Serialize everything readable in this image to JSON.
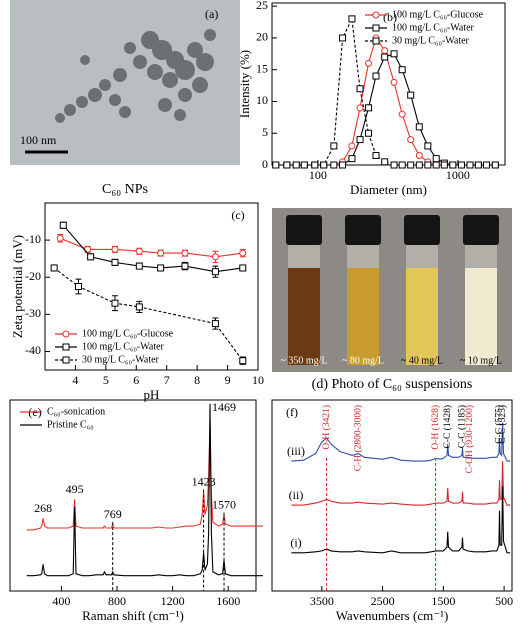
{
  "chart_data": [
    {
      "type": "line",
      "label": "(b)",
      "x_label": "Diameter (nm)",
      "y_label": "Intensity (%)",
      "xscale": "log",
      "xlim": [
        47,
        2170
      ],
      "xticks": [
        100,
        1000
      ],
      "ylim": [
        0,
        25.5
      ],
      "yticks": [
        0,
        5,
        10,
        15,
        20,
        25
      ],
      "grid": false,
      "legend": "upper right",
      "x": [
        50,
        60,
        70,
        80,
        95,
        110,
        130,
        150,
        175,
        200,
        230,
        260,
        300,
        350,
        400,
        460,
        530,
        610,
        700,
        800,
        920,
        1060,
        1220,
        1400,
        1600,
        1850
      ],
      "series": [
        {
          "name": "100 mg/L C₆₀-Glucose",
          "color": "#e8322b",
          "marker": "circle",
          "line_style": "solid",
          "values": [
            0,
            0,
            0,
            0,
            0,
            0,
            0,
            0.5,
            3,
            9,
            16,
            20,
            18,
            13,
            8,
            4,
            1.5,
            0.5,
            0,
            0,
            0,
            0,
            0,
            0,
            0,
            0
          ]
        },
        {
          "name": "100 mg/L C₆₀-Water",
          "color": "#000000",
          "marker": "square",
          "line_style": "solid",
          "values": [
            0,
            0,
            0,
            0,
            0,
            0,
            0,
            0,
            1,
            4,
            9,
            14,
            17,
            17.5,
            15,
            11,
            6,
            3,
            1,
            0.3,
            0,
            0,
            0,
            0,
            0,
            0
          ]
        },
        {
          "name": "30 mg/L C₆₀-Water",
          "color": "#000000",
          "marker": "square",
          "line_style": "dashed",
          "values": [
            0,
            0,
            0,
            0,
            0,
            0,
            3,
            20,
            23,
            12,
            5,
            1.5,
            0.5,
            0,
            0,
            0,
            0,
            0,
            0,
            0,
            0,
            0,
            0,
            0,
            0,
            0
          ]
        }
      ]
    },
    {
      "type": "line",
      "label": "(c)",
      "x_label": "pH",
      "y_label": "Zeta potential (mV)",
      "xlim": [
        3,
        10
      ],
      "xticks": [
        4,
        5,
        6,
        7,
        8,
        9,
        10
      ],
      "ylim": [
        -45,
        0
      ],
      "yticks": [
        -10,
        -20,
        -30,
        -40
      ],
      "grid": false,
      "legend": "lower left",
      "series": [
        {
          "name": "100 mg/L C₆₀-Glucose",
          "color": "#e8322b",
          "marker": "circle",
          "line_style": "solid",
          "x": [
            3.5,
            4.4,
            5.3,
            6.1,
            6.8,
            7.6,
            8.6,
            9.5
          ],
          "values": [
            -9.5,
            -12.5,
            -12.5,
            -13,
            -13.5,
            -13.5,
            -14.5,
            -13.5
          ],
          "errors": [
            1,
            0.8,
            0.8,
            0.8,
            0.8,
            0.8,
            1.5,
            1
          ]
        },
        {
          "name": "100 mg/L C₆₀-Water",
          "color": "#000000",
          "marker": "square",
          "line_style": "solid",
          "x": [
            3.6,
            4.5,
            5.3,
            6.1,
            6.8,
            7.6,
            8.6,
            9.5
          ],
          "values": [
            -6,
            -14.5,
            -16,
            -17,
            -17.5,
            -17,
            -18.5,
            -17.5
          ],
          "errors": [
            0.8,
            0.8,
            0.8,
            0.8,
            0.8,
            1,
            1.5,
            0.8
          ]
        },
        {
          "name": "30 mg/L C₆₀-Water",
          "color": "#000000",
          "marker": "square",
          "line_style": "dashed",
          "x": [
            3.3,
            4.1,
            5.3,
            6.1,
            8.6,
            9.5
          ],
          "values": [
            -17.5,
            -22.5,
            -27,
            -28,
            -32.5,
            -42.5
          ],
          "errors": [
            0.8,
            2,
            2,
            1.5,
            1.5,
            1
          ]
        }
      ]
    },
    {
      "type": "line",
      "label": "(e)",
      "x_label": "Raman shift (cm⁻¹)",
      "xlim": [
        30,
        1800
      ],
      "xticks": [
        400,
        800,
        1200,
        1600
      ],
      "ylim": [
        0,
        100
      ],
      "grid": false,
      "legend": "upper left",
      "peak_labels": [
        268,
        495,
        769,
        1423,
        1469,
        1570
      ],
      "peak_lines": [
        false,
        false,
        true,
        true,
        false,
        true
      ],
      "x": [
        150,
        200,
        250,
        258,
        268,
        278,
        300,
        350,
        400,
        450,
        485,
        495,
        505,
        550,
        600,
        650,
        700,
        710,
        720,
        760,
        769,
        778,
        850,
        900,
        950,
        1000,
        1050,
        1100,
        1150,
        1200,
        1250,
        1300,
        1350,
        1400,
        1413,
        1423,
        1433,
        1450,
        1459,
        1469,
        1479,
        1490,
        1530,
        1560,
        1570,
        1580,
        1620,
        1700,
        1750,
        1800,
        1850
      ],
      "series": [
        {
          "name": "C₆₀-sonication",
          "color": "#e8322b",
          "line_style": "solid",
          "values": [
            32,
            32,
            33,
            34,
            38,
            34,
            33,
            33,
            33,
            33,
            34,
            48,
            34,
            33,
            33,
            33,
            33,
            34,
            33,
            33,
            35,
            33,
            33,
            33,
            33,
            33,
            33,
            33.5,
            33,
            33,
            33.5,
            34,
            34,
            35,
            40,
            52,
            40,
            45,
            60,
            88,
            50,
            36,
            34,
            35,
            40,
            35,
            34,
            34,
            34,
            34,
            34
          ]
        },
        {
          "name": "Pristine C₆₀",
          "color": "#000000",
          "line_style": "solid",
          "values": [
            8,
            8,
            8.5,
            9,
            14,
            9,
            8,
            8,
            8,
            8,
            9,
            44,
            9,
            8,
            8,
            8.5,
            8.5,
            10,
            8.5,
            8.5,
            10,
            8.5,
            8,
            8,
            8,
            8,
            8,
            8.5,
            8,
            8,
            8.5,
            8,
            8,
            9,
            11,
            20,
            11,
            14,
            30,
            98,
            30,
            10,
            8.5,
            9,
            16,
            9,
            8,
            8,
            8,
            8,
            8
          ]
        }
      ]
    },
    {
      "type": "line",
      "label": "(f)",
      "x_label": "Wavenumbers (cm⁻¹)",
      "xlim": [
        4320,
        370
      ],
      "xticks": [
        3500,
        2500,
        1500,
        500
      ],
      "ylim": [
        0,
        100
      ],
      "grid": false,
      "legend": "inline",
      "annotations": [
        {
          "value": 3421,
          "label": "O-H (3421)",
          "color": "#d9262a",
          "line": true
        },
        {
          "value": 2900,
          "label": "C-H (2800-3000)",
          "color": "#d9262a",
          "line": false
        },
        {
          "value": 1628,
          "label": "O-H (1628)",
          "color": "#d9262a",
          "line": true
        },
        {
          "value": 1428,
          "label": "C-C (1428)",
          "color": "#000000",
          "line": false
        },
        {
          "value": 1185,
          "label": "C-C (1185)",
          "color": "#000000",
          "line": false
        },
        {
          "value": 1065,
          "label": "C-OH (930-1200)",
          "color": "#d9262a",
          "line": false
        },
        {
          "value": 575,
          "label": "C-C (575)",
          "color": "#000000",
          "line": false
        },
        {
          "value": 525,
          "label": "C-C (525)",
          "color": "#000000",
          "line": false
        }
      ],
      "x": [
        4000,
        3800,
        3600,
        3500,
        3421,
        3350,
        3200,
        3000,
        2900,
        2800,
        2500,
        2350,
        2200,
        2000,
        1800,
        1700,
        1628,
        1550,
        1500,
        1440,
        1428,
        1415,
        1350,
        1250,
        1195,
        1185,
        1175,
        1100,
        1000,
        900,
        800,
        700,
        620,
        585,
        575,
        565,
        540,
        525,
        510,
        450,
        400
      ],
      "series": [
        {
          "name": "(iii)",
          "color": "#2f4fa8",
          "line_style": "solid",
          "values": [
            68,
            68.5,
            72,
            78,
            80,
            77,
            73,
            71,
            72,
            70,
            69,
            70,
            68.5,
            68,
            68,
            68.5,
            69.5,
            69,
            69.5,
            71,
            77,
            71,
            70,
            70,
            71,
            75,
            70,
            70,
            69.5,
            69.5,
            69.5,
            70,
            70,
            72,
            80,
            72,
            71,
            88,
            72,
            68,
            68
          ]
        },
        {
          "name": "(ii)",
          "color": "#d9262a",
          "line_style": "solid",
          "values": [
            45,
            45,
            46,
            47,
            48,
            47,
            46,
            46,
            46.5,
            46,
            45.5,
            46,
            45.5,
            45,
            45,
            45.5,
            46,
            46,
            46,
            47,
            54,
            47,
            46,
            46,
            47,
            52,
            46,
            46,
            45.5,
            45.5,
            45.5,
            46,
            46,
            48,
            58,
            48,
            48,
            68,
            49,
            45,
            45
          ]
        },
        {
          "name": "(i)",
          "color": "#000000",
          "line_style": "solid",
          "values": [
            20,
            20,
            20.5,
            21,
            22,
            21,
            20.5,
            20.5,
            21,
            20.5,
            20,
            21,
            20,
            20,
            20,
            20.5,
            21,
            21,
            21,
            23,
            31,
            23,
            21,
            21,
            23,
            28,
            22,
            21,
            20.5,
            20.5,
            20.5,
            21,
            21,
            24,
            42,
            24,
            24,
            55,
            26,
            20,
            20
          ]
        }
      ]
    }
  ],
  "images": [
    {
      "label": "(a)",
      "scale_bar": "100 nm",
      "caption": "C₆₀ NPs"
    },
    {
      "caption": "(d) Photo of C₆₀ suspensions",
      "vials": [
        "~ 350 mg/L",
        "~ 80 mg/L",
        "~ 40 mg/L",
        "~ 10 mg/L"
      ]
    }
  ]
}
